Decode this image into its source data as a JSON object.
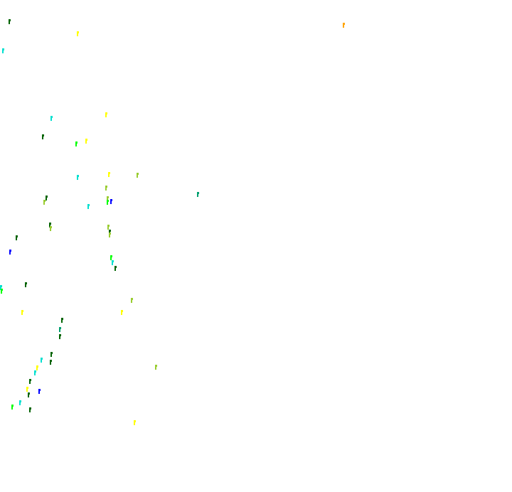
{
  "palette": {
    "background": "#ffffff",
    "dark_green": "#006400",
    "yellow": "#ffff00",
    "orange": "#ffa500",
    "cyan": "#00e0d0",
    "olive": "#9acd32",
    "blue": "#0000ff",
    "lime": "#00ff00",
    "teal": "#00a070"
  }
}
